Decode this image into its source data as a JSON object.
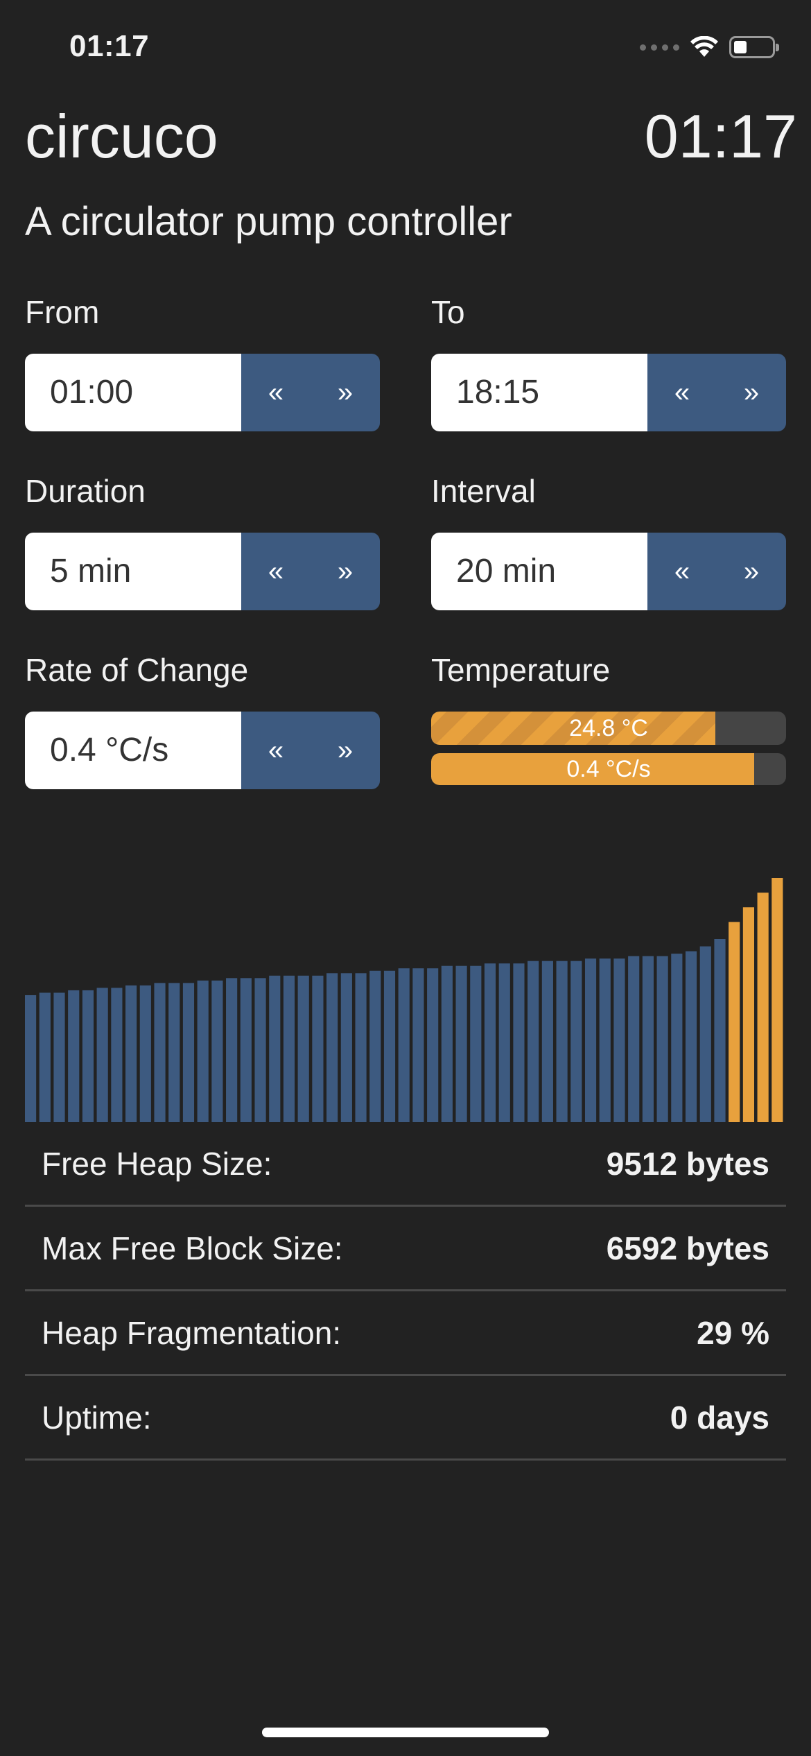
{
  "status_bar": {
    "time": "01:17",
    "icons": [
      "cellular-dots-icon",
      "wifi-icon",
      "battery-icon"
    ]
  },
  "header": {
    "title": "circuco",
    "clock": "01:17",
    "subtitle": "A circulator pump controller"
  },
  "controls": {
    "from": {
      "label": "From",
      "value": "01:00",
      "dec": "«",
      "inc": "»"
    },
    "to": {
      "label": "To",
      "value": "18:15",
      "dec": "«",
      "inc": "»"
    },
    "duration": {
      "label": "Duration",
      "value": "5 min",
      "dec": "«",
      "inc": "»"
    },
    "interval": {
      "label": "Interval",
      "value": "20 min",
      "dec": "«",
      "inc": "»"
    },
    "rate": {
      "label": "Rate of Change",
      "value": "0.4 °C/s",
      "dec": "«",
      "inc": "»"
    }
  },
  "temperature": {
    "label": "Temperature",
    "temp_text": "24.8 °C",
    "temp_fill_fraction": 0.8,
    "rate_text": "0.4 °C/s",
    "rate_fill_fraction": 0.91
  },
  "colors": {
    "background": "#222222",
    "accent_blue": "#3d5a80",
    "accent_orange": "#e8a13d"
  },
  "chart_data": {
    "type": "bar",
    "ylim": [
      0,
      100
    ],
    "values": [
      52,
      53,
      53,
      54,
      54,
      55,
      55,
      56,
      56,
      57,
      57,
      57,
      58,
      58,
      59,
      59,
      59,
      60,
      60,
      60,
      60,
      61,
      61,
      61,
      62,
      62,
      63,
      63,
      63,
      64,
      64,
      64,
      65,
      65,
      65,
      66,
      66,
      66,
      66,
      67,
      67,
      67,
      68,
      68,
      68,
      69,
      70,
      72,
      75,
      82,
      88,
      94,
      100
    ],
    "highlighted_from_index": 49,
    "colors": {
      "normal": "#3d5a80",
      "highlight": "#e8a13d"
    }
  },
  "stats": [
    {
      "label": "Free Heap Size:",
      "value": "9512 bytes"
    },
    {
      "label": "Max Free Block Size:",
      "value": "6592 bytes"
    },
    {
      "label": "Heap Fragmentation:",
      "value": "29 %"
    },
    {
      "label": "Uptime:",
      "value": "0 days"
    }
  ]
}
